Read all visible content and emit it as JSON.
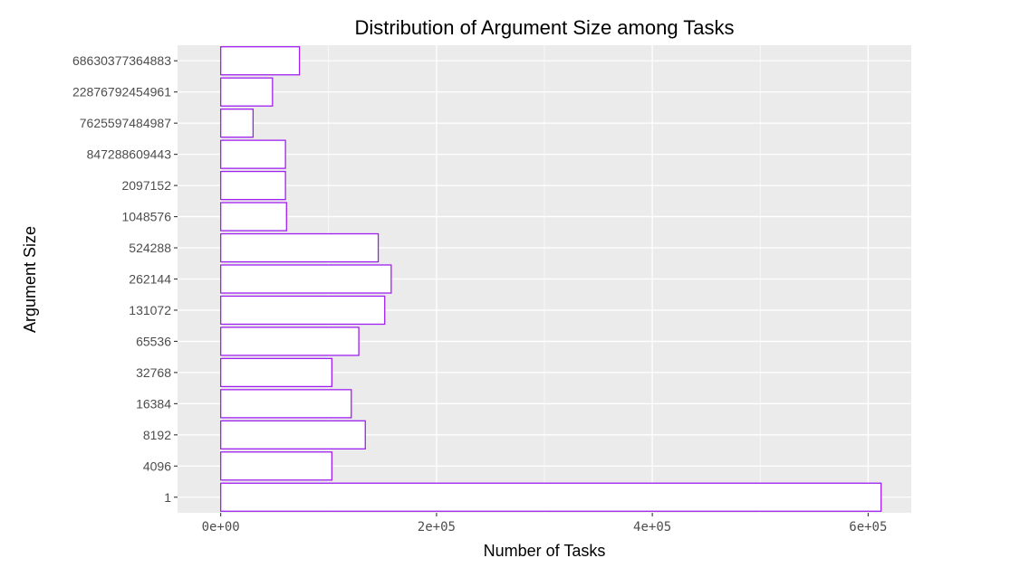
{
  "chart_data": {
    "type": "bar",
    "orientation": "horizontal",
    "title": "Distribution of Argument Size among Tasks",
    "xlabel": "Number of Tasks",
    "ylabel": "Argument Size",
    "categories": [
      "1",
      "4096",
      "8192",
      "16384",
      "32768",
      "65536",
      "131072",
      "262144",
      "524288",
      "1048576",
      "2097152",
      "847288609443",
      "7625597484987",
      "22876792454961",
      "68630377364883"
    ],
    "values": [
      612000,
      103000,
      134000,
      121000,
      103000,
      128000,
      152000,
      158000,
      146000,
      61000,
      60000,
      60000,
      30000,
      48000,
      73000
    ],
    "xlim": [
      -40000,
      640000
    ],
    "xticks": [
      0,
      200000,
      400000,
      600000
    ],
    "xtick_labels": [
      "0e+00",
      "2e+05",
      "4e+05",
      "6e+05"
    ],
    "grid": true,
    "legend": "none",
    "colors": {
      "panel_background": "#ebebeb",
      "grid_line": "#ffffff",
      "bar_fill": "#ffffff",
      "bar_outline": "#a020f0"
    }
  }
}
